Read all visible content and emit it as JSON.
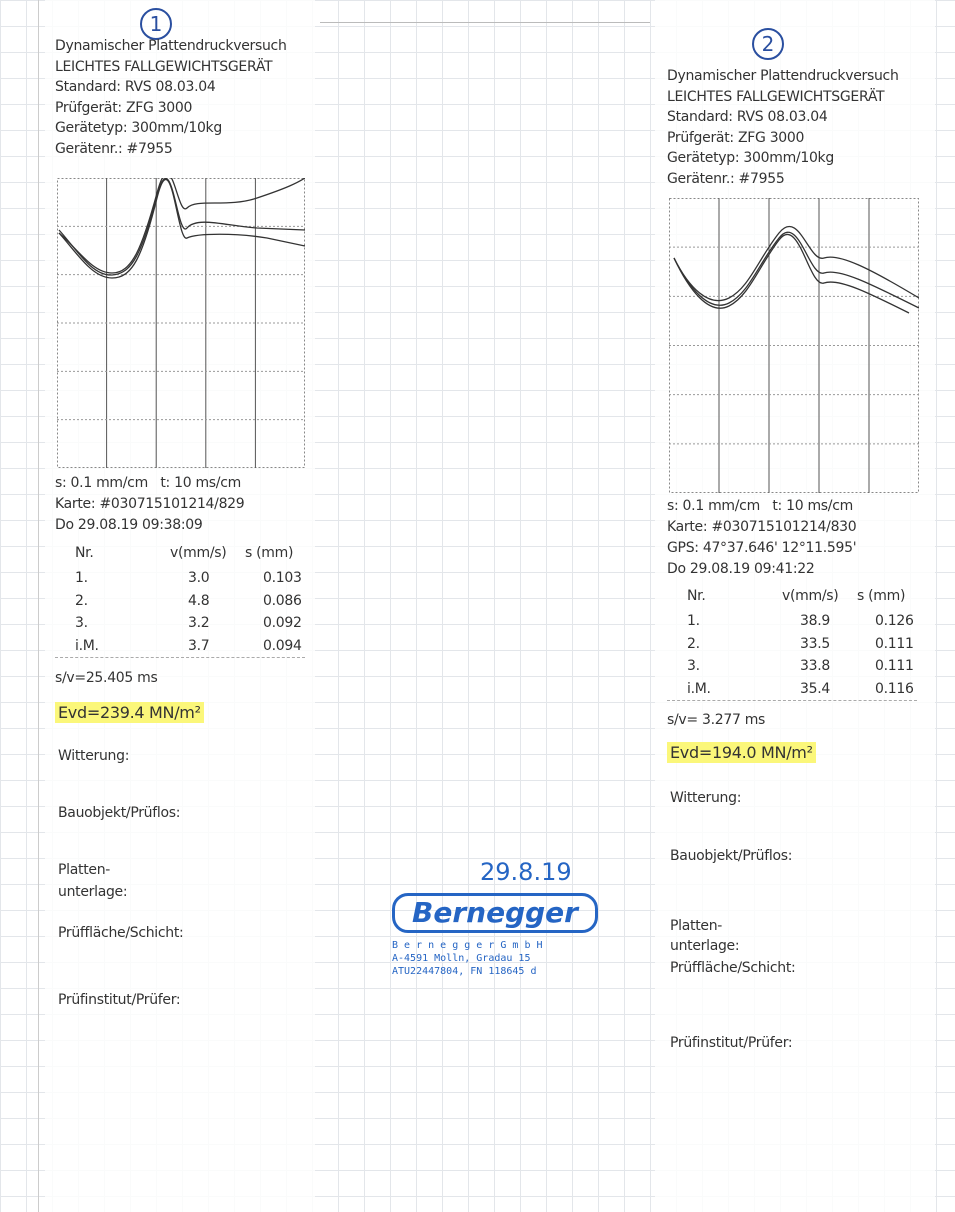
{
  "receipts": [
    {
      "number": "1",
      "header": [
        "Dynamischer Plattendruckversuch",
        "LEICHTES FALLGEWICHTSGERÄT",
        "Standard: RVS 08.03.04",
        "Prüfgerät: ZFG 3000",
        "Gerätetyp: 300mm/10kg",
        "Gerätenr.: #7955"
      ],
      "info": [
        "s: 0.1 mm/cm   t: 10 ms/cm",
        "Karte: #030715101214/829",
        "Do 29.08.19 09:38:09"
      ],
      "table": {
        "head": [
          "Nr.",
          "v(mm/s)",
          "s (mm)"
        ],
        "rows": [
          [
            "1.",
            "3.0",
            "0.103"
          ],
          [
            "2.",
            "4.8",
            "0.086"
          ],
          [
            "3.",
            "3.2",
            "0.092"
          ],
          [
            "i.M.",
            "3.7",
            "0.094"
          ]
        ]
      },
      "sv": "s/v=25.405 ms",
      "evd": "Evd=239.4 MN/m²",
      "fields": [
        "Witterung:",
        "Bauobjekt/Prüflos:",
        "Platten-",
        "unterlage:",
        "Prüffläche/Schicht:",
        "Prüfinstitut/Prüfer:"
      ]
    },
    {
      "number": "2",
      "header": [
        "Dynamischer Plattendruckversuch",
        "LEICHTES FALLGEWICHTSGERÄT",
        "Standard: RVS 08.03.04",
        "Prüfgerät: ZFG 3000",
        "Gerätetyp: 300mm/10kg",
        "Gerätenr.: #7955"
      ],
      "info": [
        "s: 0.1 mm/cm   t: 10 ms/cm",
        "Karte: #030715101214/830",
        "GPS: 47°37.646' 12°11.595'",
        "Do 29.08.19 09:41:22"
      ],
      "table": {
        "head": [
          "Nr.",
          "v(mm/s)",
          "s (mm)"
        ],
        "rows": [
          [
            "1.",
            "38.9",
            "0.126"
          ],
          [
            "2.",
            "33.5",
            "0.111"
          ],
          [
            "3.",
            "33.8",
            "0.111"
          ],
          [
            "i.M.",
            "35.4",
            "0.116"
          ]
        ]
      },
      "sv": "s/v= 3.277 ms",
      "evd": "Evd=194.0 MN/m²",
      "fields": [
        "Witterung:",
        "Bauobjekt/Prüflos:",
        "Platten-",
        "unterlage:",
        "Prüffläche/Schicht:",
        "Prüfinstitut/Prüfer:"
      ]
    }
  ],
  "stamp": {
    "date": "29.8.19",
    "company": "Bernegger",
    "lines": [
      "B e r n e g g e r   G m b H",
      "A-4591 Molln, Gradau 15",
      "ATU22447804, FN 118645 d"
    ]
  }
}
